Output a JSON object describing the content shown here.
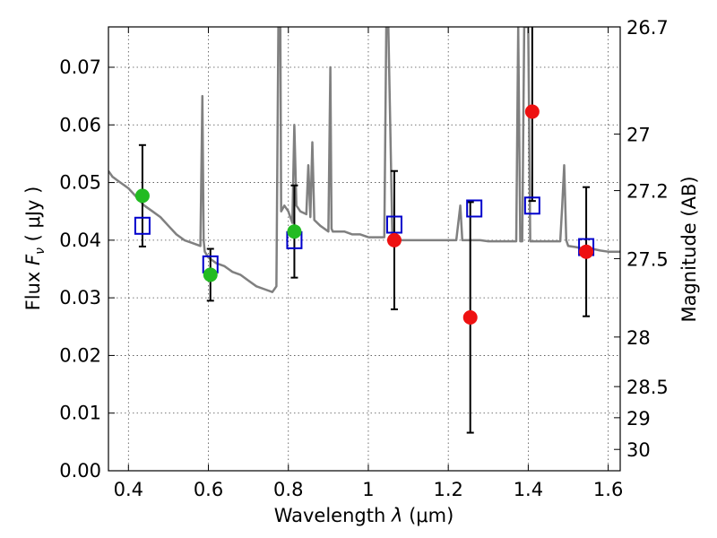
{
  "chart_data": {
    "type": "scatter",
    "xlabel_prefix": "Wavelength  ",
    "xlabel_symbol": "λ",
    "xlabel_unit": " (μm)",
    "ylabel_prefix": "Flux  ",
    "ylabel_symbol": "F",
    "ylabel_subscript": "ν",
    "ylabel_unit": "  ( μJy )",
    "y2label": "Magnitude (AB)",
    "xlim": [
      0.35,
      1.63
    ],
    "ylim": [
      0.0,
      0.077
    ],
    "xticks": [
      0.4,
      0.6,
      0.8,
      1.0,
      1.2,
      1.4,
      1.6
    ],
    "xtick_labels": [
      "0.4",
      "0.6",
      "0.8",
      "1",
      "1.2",
      "1.4",
      "1.6"
    ],
    "yticks": [
      0.0,
      0.01,
      0.02,
      0.03,
      0.04,
      0.05,
      0.06,
      0.07
    ],
    "ytick_labels": [
      "0.00",
      "0.01",
      "0.02",
      "0.03",
      "0.04",
      "0.05",
      "0.06",
      "0.07"
    ],
    "y2ticks": [
      {
        "label": "26.7",
        "flux": 0.077
      },
      {
        "label": "27",
        "flux": 0.0584
      },
      {
        "label": "27.2",
        "flux": 0.0486
      },
      {
        "label": "27.5",
        "flux": 0.0368
      },
      {
        "label": "28",
        "flux": 0.0232
      },
      {
        "label": "28.5",
        "flux": 0.0146
      },
      {
        "label": "29",
        "flux": 0.0092
      },
      {
        "label": "30",
        "flux": 0.0037
      }
    ],
    "grid": true,
    "colors": {
      "model": "#808080",
      "model_points": "#0000cc",
      "green_points": "#22bb22",
      "red_points": "#ee1111",
      "errorbar": "#000000"
    },
    "model_spectrum": {
      "x": [
        0.35,
        0.36,
        0.37,
        0.38,
        0.39,
        0.4,
        0.42,
        0.44,
        0.46,
        0.48,
        0.5,
        0.52,
        0.54,
        0.56,
        0.58,
        0.585,
        0.588,
        0.591,
        0.6,
        0.62,
        0.64,
        0.66,
        0.68,
        0.7,
        0.72,
        0.74,
        0.76,
        0.77,
        0.775,
        0.78,
        0.782,
        0.786,
        0.79,
        0.8,
        0.81,
        0.815,
        0.82,
        0.83,
        0.845,
        0.85,
        0.855,
        0.86,
        0.865,
        0.88,
        0.9,
        0.905,
        0.908,
        0.911,
        0.92,
        0.94,
        0.96,
        0.98,
        1.0,
        1.02,
        1.04,
        1.045,
        1.05,
        1.06,
        1.07,
        1.08,
        1.1,
        1.12,
        1.14,
        1.16,
        1.18,
        1.2,
        1.22,
        1.23,
        1.235,
        1.24,
        1.26,
        1.28,
        1.3,
        1.32,
        1.34,
        1.36,
        1.37,
        1.375,
        1.38,
        1.385,
        1.39,
        1.4,
        1.405,
        1.41,
        1.42,
        1.44,
        1.46,
        1.48,
        1.485,
        1.49,
        1.495,
        1.5,
        1.52,
        1.54,
        1.56,
        1.58,
        1.6,
        1.63
      ],
      "y": [
        0.052,
        0.051,
        0.0505,
        0.05,
        0.0495,
        0.049,
        0.0475,
        0.046,
        0.045,
        0.044,
        0.0425,
        0.041,
        0.04,
        0.0395,
        0.039,
        0.065,
        0.04,
        0.038,
        0.037,
        0.036,
        0.0355,
        0.0345,
        0.034,
        0.033,
        0.032,
        0.0315,
        0.031,
        0.032,
        0.077,
        0.077,
        0.045,
        0.0455,
        0.046,
        0.045,
        0.043,
        0.06,
        0.046,
        0.045,
        0.0445,
        0.053,
        0.044,
        0.057,
        0.0435,
        0.0425,
        0.0415,
        0.07,
        0.042,
        0.0415,
        0.0415,
        0.0415,
        0.041,
        0.041,
        0.0405,
        0.0405,
        0.0405,
        0.077,
        0.077,
        0.0415,
        0.0405,
        0.04,
        0.04,
        0.04,
        0.04,
        0.04,
        0.04,
        0.04,
        0.04,
        0.046,
        0.04,
        0.04,
        0.04,
        0.04,
        0.0398,
        0.0398,
        0.0398,
        0.0398,
        0.0398,
        0.077,
        0.0398,
        0.0398,
        0.077,
        0.077,
        0.0398,
        0.0398,
        0.0398,
        0.0398,
        0.0398,
        0.0398,
        0.046,
        0.053,
        0.04,
        0.039,
        0.0388,
        0.0385,
        0.0385,
        0.0382,
        0.038,
        0.038
      ]
    },
    "model_points": {
      "x": [
        0.435,
        0.605,
        0.815,
        1.065,
        1.265,
        1.41,
        1.545
      ],
      "y": [
        0.0425,
        0.0358,
        0.04,
        0.0427,
        0.0455,
        0.046,
        0.0388
      ]
    },
    "green_points": {
      "x": [
        0.435,
        0.605,
        0.815
      ],
      "y": [
        0.0477,
        0.034,
        0.0415
      ],
      "yerr": [
        0.0088,
        0.0045,
        0.008
      ]
    },
    "red_points": {
      "x": [
        1.065,
        1.255,
        1.41,
        1.545
      ],
      "y": [
        0.04,
        0.0266,
        0.0623,
        0.038
      ],
      "yerr": [
        0.012,
        0.02,
        0.0155,
        0.0112
      ]
    }
  }
}
